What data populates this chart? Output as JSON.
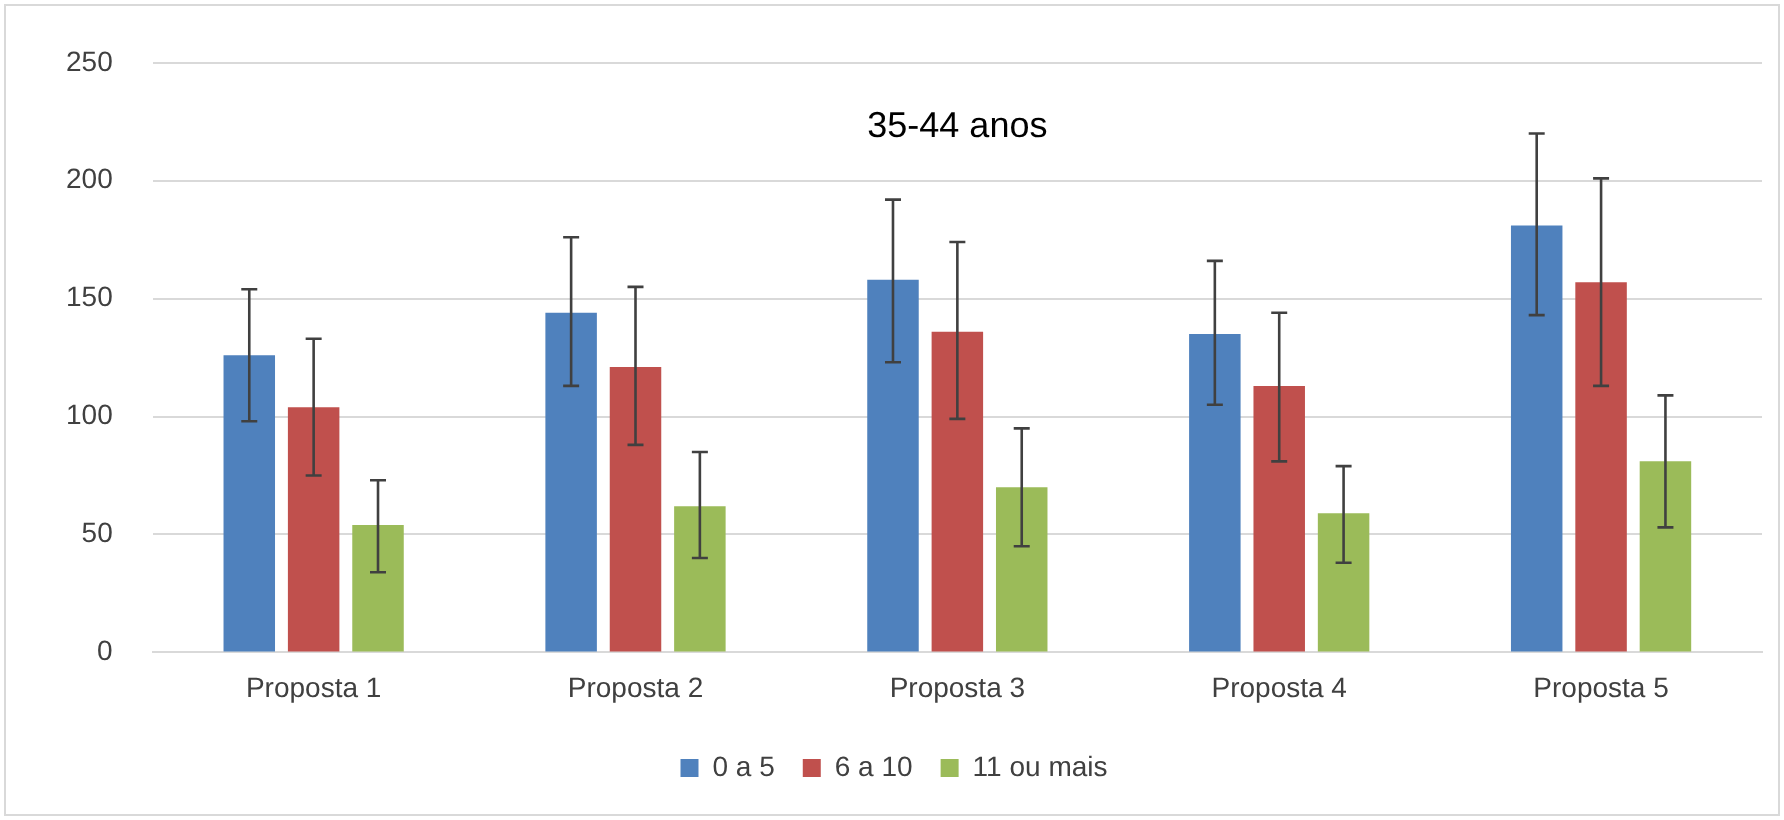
{
  "chart_data": {
    "type": "bar",
    "title": "35-44 anos",
    "categories": [
      "Proposta 1",
      "Proposta 2",
      "Proposta 3",
      "Proposta 4",
      "Proposta 5"
    ],
    "series": [
      {
        "name": "0 a 5",
        "color": "#4f81bd",
        "values": [
          126,
          144,
          158,
          135,
          181
        ],
        "errors": [
          [
            98,
            154
          ],
          [
            113,
            176
          ],
          [
            123,
            192
          ],
          [
            105,
            166
          ],
          [
            143,
            220
          ]
        ]
      },
      {
        "name": "6 a 10",
        "color": "#c0504d",
        "values": [
          104,
          121,
          136,
          113,
          157
        ],
        "errors": [
          [
            75,
            133
          ],
          [
            88,
            155
          ],
          [
            99,
            174
          ],
          [
            81,
            144
          ],
          [
            113,
            201
          ]
        ]
      },
      {
        "name": "11 ou mais",
        "color": "#9bbb59",
        "values": [
          54,
          62,
          70,
          59,
          81
        ],
        "errors": [
          [
            34,
            73
          ],
          [
            40,
            85
          ],
          [
            45,
            95
          ],
          [
            38,
            79
          ],
          [
            53,
            109
          ]
        ]
      }
    ],
    "ylim": [
      0,
      250
    ],
    "yticks": [
      0,
      50,
      100,
      150,
      200,
      250
    ],
    "grid": "y",
    "legend": "bottom"
  }
}
